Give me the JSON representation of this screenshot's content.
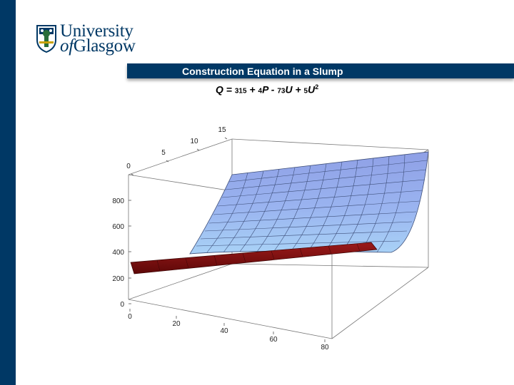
{
  "logo": {
    "line1": "University",
    "line2_of": "of",
    "line2_name": "Glasgow"
  },
  "slide": {
    "title": "Construction Equation in a Slump",
    "equation": {
      "q": "Q = ",
      "c0": "315",
      "t1": " + ",
      "c1": "4",
      "t2": "P - ",
      "c2": "73",
      "t3": "U + ",
      "c3": "5",
      "t4": "U",
      "exp": "2"
    }
  },
  "plot": {
    "z_ticks": [
      "0",
      "200",
      "400",
      "600",
      "800"
    ],
    "u_ticks": [
      "0",
      "5",
      "10",
      "15"
    ],
    "p_ticks": [
      "0",
      "20",
      "40",
      "60",
      "80"
    ]
  },
  "colors": {
    "brand": "#003865",
    "surface": "#9fb8f2",
    "plane": "#7a1010"
  }
}
